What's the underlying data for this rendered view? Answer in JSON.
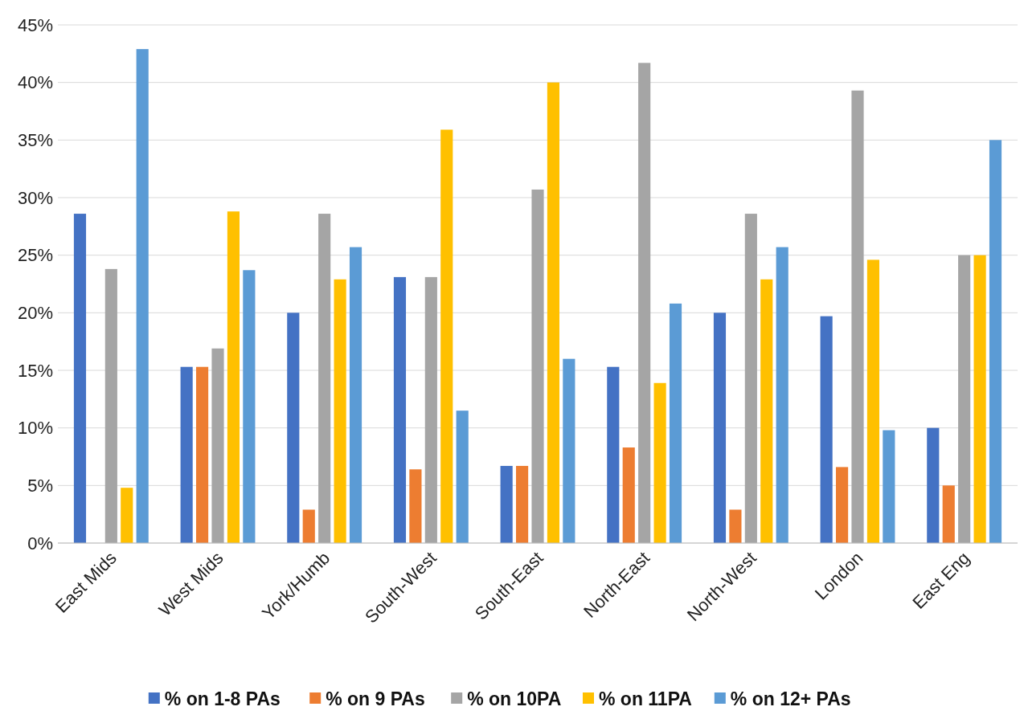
{
  "chart_data": {
    "type": "bar",
    "categories": [
      "East Mids",
      "West Mids",
      "York/Humb",
      "South-West",
      "South-East",
      "North-East",
      "North-West",
      "London",
      "East Eng"
    ],
    "series": [
      {
        "name": "% on 1-8 PAs",
        "color": "#4472c4",
        "values": [
          28.6,
          15.3,
          20.0,
          23.1,
          6.7,
          15.3,
          20.0,
          19.7,
          10.0
        ]
      },
      {
        "name": "% on 9 PAs",
        "color": "#ed7d31",
        "values": [
          0,
          15.3,
          2.9,
          6.4,
          6.7,
          8.3,
          2.9,
          6.6,
          5.0
        ]
      },
      {
        "name": "% on 10PA",
        "color": "#a5a5a5",
        "values": [
          23.8,
          16.9,
          28.6,
          23.1,
          30.7,
          41.7,
          28.6,
          39.3,
          25.0
        ]
      },
      {
        "name": "% on 11PA",
        "color": "#ffc000",
        "values": [
          4.8,
          28.8,
          22.9,
          35.9,
          40.0,
          13.9,
          22.9,
          24.6,
          25.0
        ]
      },
      {
        "name": "% on 12+ PAs",
        "color": "#5b9bd5",
        "values": [
          42.9,
          23.7,
          25.7,
          11.5,
          16.0,
          20.8,
          25.7,
          9.8,
          35.0
        ]
      }
    ],
    "ylim": [
      0,
      45
    ],
    "yticks": [
      {
        "value": 0,
        "label": "0%"
      },
      {
        "value": 5,
        "label": "5%"
      },
      {
        "value": 10,
        "label": "10%"
      },
      {
        "value": 15,
        "label": "15%"
      },
      {
        "value": 20,
        "label": "20%"
      },
      {
        "value": 25,
        "label": "25%"
      },
      {
        "value": 30,
        "label": "30%"
      },
      {
        "value": 35,
        "label": "35%"
      },
      {
        "value": 40,
        "label": "40%"
      },
      {
        "value": 45,
        "label": "45%"
      }
    ],
    "grid": "y",
    "legend": "bottom"
  }
}
